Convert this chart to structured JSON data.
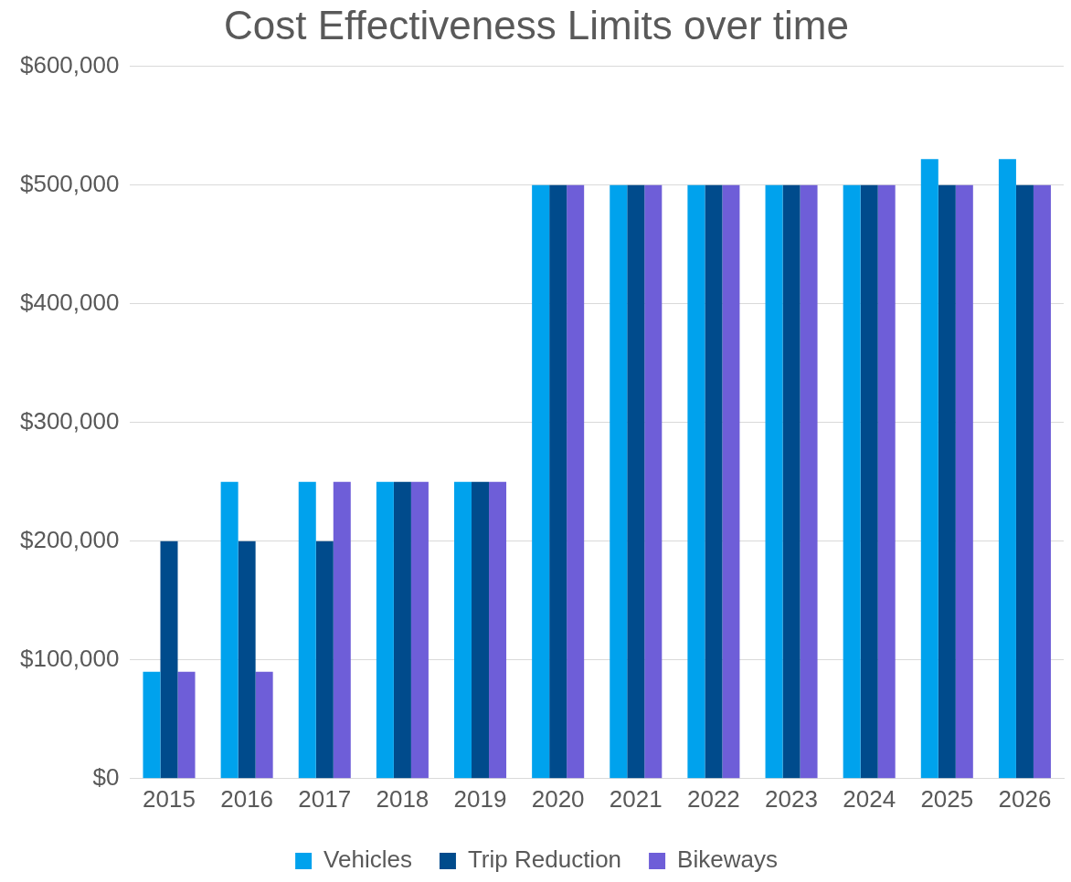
{
  "chart_data": {
    "type": "bar",
    "title": "Cost Effectiveness Limits over time",
    "categories": [
      "2015",
      "2016",
      "2017",
      "2018",
      "2019",
      "2020",
      "2021",
      "2022",
      "2023",
      "2024",
      "2025",
      "2026"
    ],
    "series": [
      {
        "name": "Vehicles",
        "color": "#00a2ed",
        "values": [
          90000,
          250000,
          250000,
          250000,
          250000,
          500000,
          500000,
          500000,
          500000,
          500000,
          522000,
          522000
        ]
      },
      {
        "name": "Trip Reduction",
        "color": "#004b8c",
        "values": [
          200000,
          200000,
          200000,
          250000,
          250000,
          500000,
          500000,
          500000,
          500000,
          500000,
          500000,
          500000
        ]
      },
      {
        "name": "Bikeways",
        "color": "#6e5ed8",
        "values": [
          90000,
          90000,
          250000,
          250000,
          250000,
          500000,
          500000,
          500000,
          500000,
          500000,
          500000,
          500000
        ]
      }
    ],
    "ylim": [
      0,
      600000
    ],
    "yticks": [
      {
        "value": 0,
        "label": "$0"
      },
      {
        "value": 100000,
        "label": "$100,000"
      },
      {
        "value": 200000,
        "label": "$200,000"
      },
      {
        "value": 300000,
        "label": "$300,000"
      },
      {
        "value": 400000,
        "label": "$400,000"
      },
      {
        "value": 500000,
        "label": "$500,000"
      },
      {
        "value": 600000,
        "label": "$600,000"
      }
    ],
    "grid": "y",
    "legend": "bottom"
  }
}
